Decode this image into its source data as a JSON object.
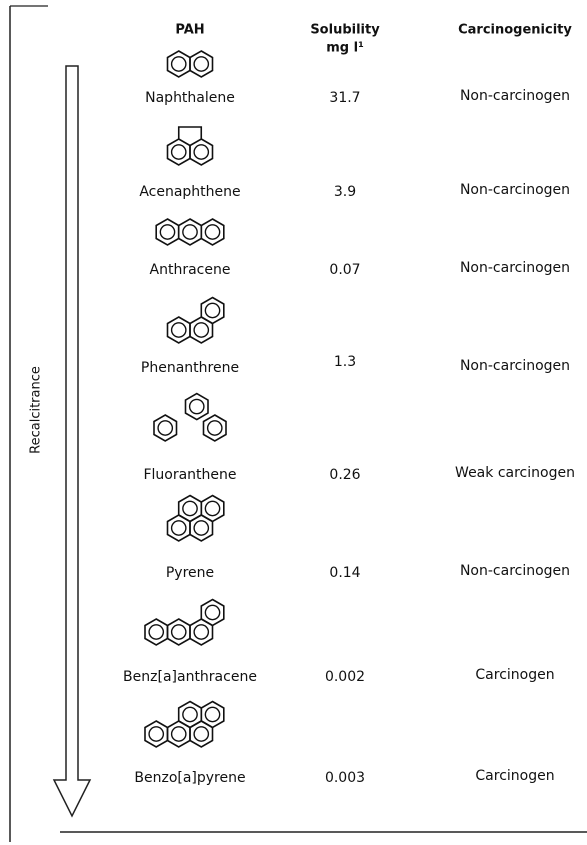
{
  "header": {
    "pah": "PAH",
    "solubility": [
      "Solubility",
      "mg l¹"
    ],
    "carcinogenicity": "Carcinogenicity"
  },
  "side_label": "Recalcitrance",
  "table": {
    "rows": [
      [
        "Naphthalene",
        "31.7",
        "Non-carcinogen"
      ],
      [
        "Acenaphthene",
        "3.9",
        "Non-carcinogen"
      ],
      [
        "Anthracene",
        "0.07",
        "Non-carcinogen"
      ],
      [
        "Phenanthrene",
        "1.3",
        "Non-carcinogen"
      ],
      [
        "Fluoranthene",
        "0.26",
        "Weak carcinogen"
      ],
      [
        "Pyrene",
        "0.14",
        "Non-carcinogen"
      ],
      [
        "Benz[a]anthracene",
        "0.002",
        "Carcinogen"
      ],
      [
        "Benzo[a]pyrene",
        "0.003",
        "Carcinogen"
      ]
    ]
  }
}
